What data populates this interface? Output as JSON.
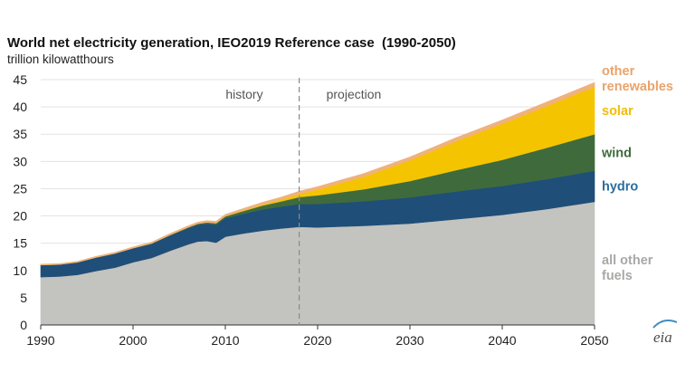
{
  "chart_data": {
    "type": "area",
    "stacked": true,
    "title": "World net electricity generation, IEO2019 Reference case  (1990-2050)",
    "ylabel": "trillion kilowatthours",
    "xlabel": "",
    "xlim": [
      1990,
      2050
    ],
    "ylim": [
      0,
      45
    ],
    "xticks": [
      1990,
      2000,
      2010,
      2020,
      2030,
      2040,
      2050
    ],
    "yticks": [
      0,
      5,
      10,
      15,
      20,
      25,
      30,
      35,
      40,
      45
    ],
    "divider_year": 2018,
    "annotations": {
      "history": "history",
      "projection": "projection"
    },
    "x": [
      1990,
      1992,
      1994,
      1996,
      1998,
      2000,
      2002,
      2004,
      2006,
      2007,
      2008,
      2009,
      2010,
      2012,
      2014,
      2016,
      2018,
      2020,
      2025,
      2030,
      2035,
      2040,
      2045,
      2050
    ],
    "series": [
      {
        "name": "all other fuels",
        "label": "all other\nfuels",
        "color": "#c3c3bf",
        "values": [
          8.8,
          8.9,
          9.2,
          9.9,
          10.5,
          11.5,
          12.3,
          13.6,
          14.8,
          15.3,
          15.4,
          15.1,
          16.2,
          16.8,
          17.3,
          17.7,
          18.0,
          17.9,
          18.2,
          18.6,
          19.4,
          20.2,
          21.3,
          22.6
        ]
      },
      {
        "name": "hydro",
        "label": "hydro",
        "color": "#1f4e79",
        "values": [
          2.2,
          2.2,
          2.3,
          2.5,
          2.6,
          2.6,
          2.6,
          2.8,
          3.0,
          3.1,
          3.2,
          3.3,
          3.4,
          3.6,
          3.9,
          4.0,
          4.2,
          4.3,
          4.5,
          4.8,
          5.1,
          5.3,
          5.5,
          5.7
        ]
      },
      {
        "name": "wind",
        "label": "wind",
        "color": "#3f6b3c",
        "values": [
          0.0,
          0.0,
          0.0,
          0.0,
          0.0,
          0.0,
          0.05,
          0.1,
          0.13,
          0.17,
          0.22,
          0.28,
          0.34,
          0.52,
          0.7,
          0.96,
          1.27,
          1.6,
          2.2,
          3.0,
          3.9,
          4.8,
          5.8,
          6.7
        ]
      },
      {
        "name": "solar",
        "label": "solar",
        "color": "#f5c400",
        "values": [
          0.0,
          0.0,
          0.0,
          0.0,
          0.0,
          0.0,
          0.0,
          0.0,
          0.0,
          0.01,
          0.02,
          0.02,
          0.03,
          0.1,
          0.18,
          0.3,
          0.55,
          1.05,
          2.3,
          3.8,
          5.3,
          6.6,
          7.7,
          8.7
        ]
      },
      {
        "name": "other renewables",
        "label": "other\nrenewables",
        "color": "#efb27c",
        "values": [
          0.15,
          0.16,
          0.17,
          0.19,
          0.21,
          0.22,
          0.24,
          0.26,
          0.28,
          0.29,
          0.3,
          0.31,
          0.33,
          0.37,
          0.42,
          0.46,
          0.5,
          0.53,
          0.58,
          0.62,
          0.66,
          0.7,
          0.74,
          0.78
        ]
      }
    ],
    "logo_text": "eia"
  }
}
